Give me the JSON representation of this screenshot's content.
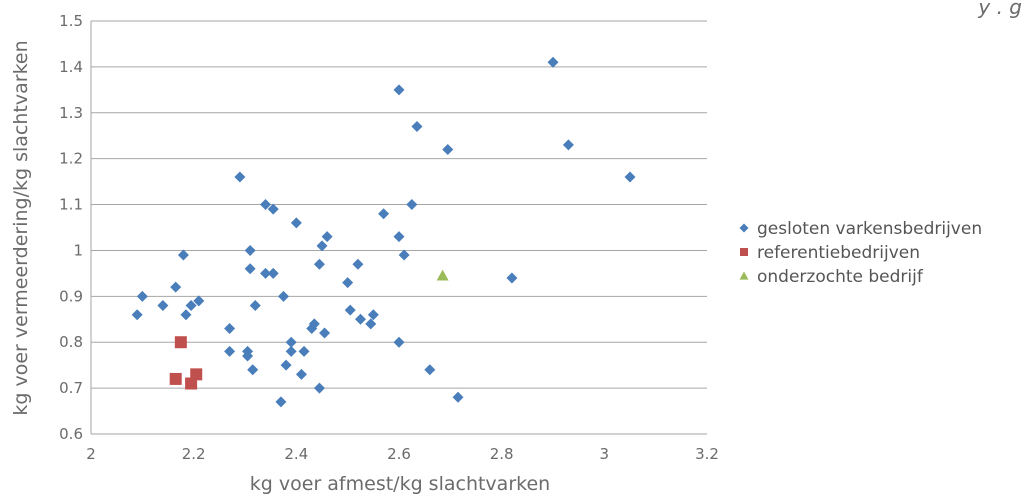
{
  "corner_text": "y . g",
  "chart_data": {
    "type": "scatter",
    "xlabel": "kg voer afmest/kg slachtvarken",
    "ylabel": "kg voer vermeerdering/kg slachtvarken",
    "xlim": [
      2,
      3.2
    ],
    "ylim": [
      0.6,
      1.5
    ],
    "x_ticks": [
      "2",
      "2.2",
      "2.4",
      "2.6",
      "2.8",
      "3",
      "3.2"
    ],
    "y_ticks": [
      "0.6",
      "0.7",
      "0.8",
      "0.9",
      "1",
      "1.1",
      "1.2",
      "1.3",
      "1.4",
      "1.5"
    ],
    "grid": "horizontal",
    "legend_position": "right",
    "series": [
      {
        "name": "gesloten varkensbedrijven",
        "color": "#4a7ebb",
        "marker": "diamond",
        "points": [
          [
            2.09,
            0.86
          ],
          [
            2.1,
            0.9
          ],
          [
            2.14,
            0.88
          ],
          [
            2.165,
            0.92
          ],
          [
            2.18,
            0.99
          ],
          [
            2.185,
            0.86
          ],
          [
            2.195,
            0.88
          ],
          [
            2.21,
            0.89
          ],
          [
            2.27,
            0.83
          ],
          [
            2.27,
            0.78
          ],
          [
            2.29,
            1.16
          ],
          [
            2.305,
            0.78
          ],
          [
            2.305,
            0.77
          ],
          [
            2.31,
            1.0
          ],
          [
            2.31,
            0.96
          ],
          [
            2.315,
            0.74
          ],
          [
            2.32,
            0.88
          ],
          [
            2.34,
            0.95
          ],
          [
            2.34,
            1.1
          ],
          [
            2.355,
            1.09
          ],
          [
            2.355,
            0.95
          ],
          [
            2.37,
            0.67
          ],
          [
            2.375,
            0.9
          ],
          [
            2.38,
            0.75
          ],
          [
            2.39,
            0.8
          ],
          [
            2.39,
            0.78
          ],
          [
            2.4,
            1.06
          ],
          [
            2.41,
            0.73
          ],
          [
            2.415,
            0.78
          ],
          [
            2.43,
            0.83
          ],
          [
            2.435,
            0.84
          ],
          [
            2.445,
            0.7
          ],
          [
            2.445,
            0.97
          ],
          [
            2.45,
            1.01
          ],
          [
            2.455,
            0.82
          ],
          [
            2.46,
            1.03
          ],
          [
            2.5,
            0.93
          ],
          [
            2.505,
            0.87
          ],
          [
            2.52,
            0.97
          ],
          [
            2.525,
            0.85
          ],
          [
            2.545,
            0.84
          ],
          [
            2.55,
            0.86
          ],
          [
            2.57,
            1.08
          ],
          [
            2.6,
            1.03
          ],
          [
            2.6,
            0.8
          ],
          [
            2.6,
            1.35
          ],
          [
            2.61,
            0.99
          ],
          [
            2.625,
            1.1
          ],
          [
            2.635,
            1.27
          ],
          [
            2.66,
            0.74
          ],
          [
            2.695,
            1.22
          ],
          [
            2.715,
            0.68
          ],
          [
            2.82,
            0.94
          ],
          [
            2.9,
            1.41
          ],
          [
            2.93,
            1.23
          ],
          [
            3.05,
            1.16
          ]
        ]
      },
      {
        "name": "referentiebedrijven",
        "color": "#c0504d",
        "marker": "square",
        "points": [
          [
            2.165,
            0.72
          ],
          [
            2.175,
            0.8
          ],
          [
            2.195,
            0.71
          ],
          [
            2.205,
            0.73
          ]
        ]
      },
      {
        "name": "onderzochte bedrijf",
        "color": "#9bbb59",
        "marker": "triangle",
        "points": [
          [
            2.685,
            0.945
          ]
        ]
      }
    ]
  }
}
